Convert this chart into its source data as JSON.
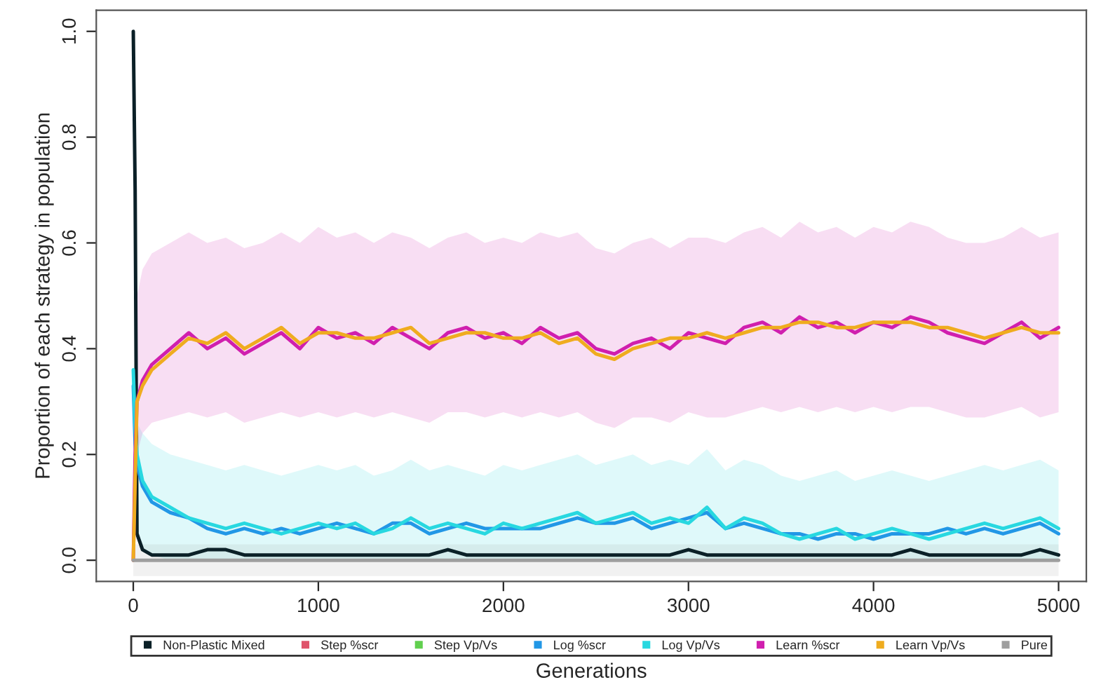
{
  "chart_data": {
    "type": "line",
    "xlabel": "Generations",
    "ylabel": "Proportion of each strategy in population",
    "x": [
      0,
      10,
      20,
      50,
      100,
      200,
      300,
      400,
      500,
      600,
      700,
      800,
      900,
      1000,
      1100,
      1200,
      1300,
      1400,
      1500,
      1600,
      1700,
      1800,
      1900,
      2000,
      2100,
      2200,
      2300,
      2400,
      2500,
      2600,
      2700,
      2800,
      2900,
      3000,
      3100,
      3200,
      3300,
      3400,
      3500,
      3600,
      3700,
      3800,
      3900,
      4000,
      4100,
      4200,
      4300,
      4400,
      4500,
      4600,
      4700,
      4800,
      4900,
      5000
    ],
    "xlim": [
      -200,
      5150
    ],
    "xticks": [
      0,
      1000,
      2000,
      3000,
      4000,
      5000
    ],
    "ylim": [
      -0.04,
      1.04
    ],
    "yticks": [
      {
        "value": 0,
        "label": "0.0"
      },
      0.2,
      0.4,
      0.6,
      0.8,
      {
        "value": 1,
        "label": "1.0"
      }
    ],
    "grid": false,
    "legend": "bottom",
    "line_style": "solid",
    "marker": "none",
    "series": [
      {
        "name": "Non-Plastic Mixed",
        "color": "#0b2027",
        "values": [
          1.0,
          0.7,
          0.05,
          0.02,
          0.01,
          0.01,
          0.01,
          0.02,
          0.02,
          0.01,
          0.01,
          0.01,
          0.01,
          0.01,
          0.01,
          0.01,
          0.01,
          0.01,
          0.01,
          0.01,
          0.02,
          0.01,
          0.01,
          0.01,
          0.01,
          0.01,
          0.01,
          0.01,
          0.01,
          0.01,
          0.01,
          0.01,
          0.01,
          0.02,
          0.01,
          0.01,
          0.01,
          0.01,
          0.01,
          0.01,
          0.01,
          0.01,
          0.01,
          0.01,
          0.01,
          0.02,
          0.01,
          0.01,
          0.01,
          0.01,
          0.01,
          0.01,
          0.02,
          0.01
        ]
      },
      {
        "name": "Step %scr",
        "color": "#df536b",
        "values": [
          null,
          null,
          null,
          null,
          null,
          null,
          null,
          null,
          null,
          null,
          null,
          null,
          null,
          null,
          null,
          null,
          null,
          null,
          null,
          null,
          null,
          null,
          null,
          null,
          null,
          null,
          null,
          null,
          null,
          null,
          null,
          null,
          null,
          null,
          null,
          null,
          null,
          null,
          null,
          null,
          null,
          null,
          null,
          null,
          null,
          null,
          null,
          null,
          null,
          null,
          null,
          null,
          null,
          null
        ]
      },
      {
        "name": "Step Vp/Vs",
        "color": "#61d04f",
        "values": [
          null,
          null,
          null,
          null,
          null,
          null,
          null,
          null,
          null,
          null,
          null,
          null,
          null,
          null,
          null,
          null,
          null,
          null,
          null,
          null,
          null,
          null,
          null,
          null,
          null,
          null,
          null,
          null,
          null,
          null,
          null,
          null,
          null,
          null,
          null,
          null,
          null,
          null,
          null,
          null,
          null,
          null,
          null,
          null,
          null,
          null,
          null,
          null,
          null,
          null,
          null,
          null,
          null,
          null
        ]
      },
      {
        "name": "Log %scr",
        "color": "#2297e6",
        "values": [
          0.33,
          0.22,
          0.18,
          0.14,
          0.11,
          0.09,
          0.08,
          0.06,
          0.05,
          0.06,
          0.05,
          0.06,
          0.05,
          0.06,
          0.07,
          0.06,
          0.05,
          0.07,
          0.07,
          0.05,
          0.06,
          0.07,
          0.06,
          0.06,
          0.06,
          0.06,
          0.07,
          0.08,
          0.07,
          0.07,
          0.08,
          0.06,
          0.07,
          0.08,
          0.09,
          0.06,
          0.07,
          0.06,
          0.05,
          0.05,
          0.04,
          0.05,
          0.05,
          0.04,
          0.05,
          0.05,
          0.05,
          0.06,
          0.05,
          0.06,
          0.05,
          0.06,
          0.07,
          0.05
        ]
      },
      {
        "name": "Log Vp/Vs",
        "color": "#28d8e0",
        "values": [
          0.36,
          0.25,
          0.2,
          0.15,
          0.12,
          0.1,
          0.08,
          0.07,
          0.06,
          0.07,
          0.06,
          0.05,
          0.06,
          0.07,
          0.06,
          0.07,
          0.05,
          0.06,
          0.08,
          0.06,
          0.07,
          0.06,
          0.05,
          0.07,
          0.06,
          0.07,
          0.08,
          0.09,
          0.07,
          0.08,
          0.09,
          0.07,
          0.08,
          0.07,
          0.1,
          0.06,
          0.08,
          0.07,
          0.05,
          0.04,
          0.05,
          0.06,
          0.04,
          0.05,
          0.06,
          0.05,
          0.04,
          0.05,
          0.06,
          0.07,
          0.06,
          0.07,
          0.08,
          0.06
        ],
        "lower": [
          0.2,
          0.1,
          0.05,
          0.02,
          0.01,
          0.0,
          0.0,
          0.0,
          0.0,
          0.0,
          0.0,
          0.0,
          0.0,
          0.0,
          0.0,
          0.0,
          0.0,
          0.0,
          0.0,
          0.0,
          0.0,
          0.0,
          0.0,
          0.0,
          0.0,
          0.0,
          0.0,
          0.0,
          0.0,
          0.0,
          0.0,
          0.0,
          0.0,
          0.0,
          0.0,
          0.0,
          0.0,
          0.0,
          0.0,
          0.0,
          0.0,
          0.0,
          0.0,
          0.0,
          0.0,
          0.0,
          0.0,
          0.0,
          0.0,
          0.0,
          0.0,
          0.0,
          0.0,
          0.0
        ],
        "upper": [
          0.36,
          0.3,
          0.26,
          0.24,
          0.22,
          0.2,
          0.19,
          0.18,
          0.17,
          0.18,
          0.17,
          0.16,
          0.17,
          0.18,
          0.17,
          0.18,
          0.16,
          0.17,
          0.19,
          0.17,
          0.18,
          0.17,
          0.16,
          0.18,
          0.17,
          0.18,
          0.19,
          0.2,
          0.18,
          0.19,
          0.2,
          0.18,
          0.19,
          0.18,
          0.21,
          0.17,
          0.19,
          0.18,
          0.16,
          0.15,
          0.16,
          0.17,
          0.15,
          0.16,
          0.17,
          0.16,
          0.15,
          0.16,
          0.17,
          0.18,
          0.17,
          0.18,
          0.19,
          0.17
        ]
      },
      {
        "name": "Learn %scr",
        "color": "#d01fae",
        "values": [
          0,
          0.2,
          0.3,
          0.34,
          0.37,
          0.4,
          0.43,
          0.4,
          0.42,
          0.39,
          0.41,
          0.43,
          0.4,
          0.44,
          0.42,
          0.43,
          0.41,
          0.44,
          0.42,
          0.4,
          0.43,
          0.44,
          0.42,
          0.43,
          0.41,
          0.44,
          0.42,
          0.43,
          0.4,
          0.39,
          0.41,
          0.42,
          0.4,
          0.43,
          0.42,
          0.41,
          0.44,
          0.45,
          0.43,
          0.46,
          0.44,
          0.45,
          0.43,
          0.45,
          0.44,
          0.46,
          0.45,
          0.43,
          0.42,
          0.41,
          0.43,
          0.45,
          0.42,
          0.44
        ],
        "lower": [
          0,
          0.1,
          0.2,
          0.24,
          0.26,
          0.27,
          0.28,
          0.27,
          0.28,
          0.26,
          0.27,
          0.28,
          0.27,
          0.28,
          0.27,
          0.28,
          0.27,
          0.28,
          0.27,
          0.26,
          0.28,
          0.28,
          0.27,
          0.28,
          0.27,
          0.28,
          0.27,
          0.28,
          0.26,
          0.25,
          0.27,
          0.27,
          0.26,
          0.28,
          0.27,
          0.27,
          0.28,
          0.29,
          0.28,
          0.29,
          0.28,
          0.29,
          0.28,
          0.29,
          0.28,
          0.29,
          0.29,
          0.28,
          0.27,
          0.27,
          0.28,
          0.29,
          0.27,
          0.28
        ],
        "upper": [
          0,
          0.3,
          0.5,
          0.55,
          0.58,
          0.6,
          0.62,
          0.6,
          0.61,
          0.59,
          0.6,
          0.62,
          0.6,
          0.63,
          0.61,
          0.62,
          0.6,
          0.62,
          0.61,
          0.59,
          0.61,
          0.62,
          0.6,
          0.61,
          0.6,
          0.62,
          0.61,
          0.62,
          0.59,
          0.58,
          0.6,
          0.61,
          0.59,
          0.61,
          0.61,
          0.6,
          0.62,
          0.63,
          0.61,
          0.64,
          0.62,
          0.63,
          0.61,
          0.63,
          0.62,
          0.64,
          0.63,
          0.61,
          0.6,
          0.6,
          0.61,
          0.63,
          0.61,
          0.62
        ]
      },
      {
        "name": "Learn Vp/Vs",
        "color": "#efac1f",
        "values": [
          0,
          0.15,
          0.3,
          0.33,
          0.36,
          0.39,
          0.42,
          0.41,
          0.43,
          0.4,
          0.42,
          0.44,
          0.41,
          0.43,
          0.43,
          0.42,
          0.42,
          0.43,
          0.44,
          0.41,
          0.42,
          0.43,
          0.43,
          0.42,
          0.42,
          0.43,
          0.41,
          0.42,
          0.39,
          0.38,
          0.4,
          0.41,
          0.42,
          0.42,
          0.43,
          0.42,
          0.43,
          0.44,
          0.44,
          0.45,
          0.45,
          0.44,
          0.44,
          0.45,
          0.45,
          0.45,
          0.44,
          0.44,
          0.43,
          0.42,
          0.43,
          0.44,
          0.43,
          0.43
        ]
      },
      {
        "name": "Pure",
        "color": "#9e9e9e",
        "x": [
          0,
          5000
        ],
        "values": [
          0,
          0
        ],
        "lower": [
          -0.03,
          -0.03
        ],
        "upper": [
          0.03,
          0.03
        ]
      }
    ]
  }
}
